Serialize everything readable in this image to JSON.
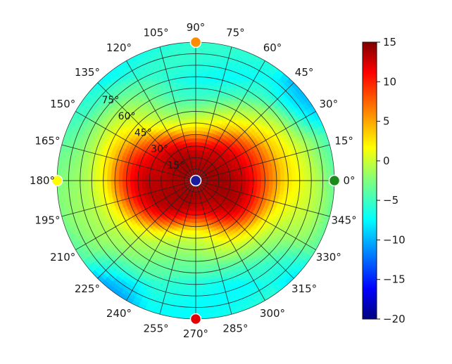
{
  "chart_data": {
    "type": "heatmap",
    "projection": "polar",
    "title": "",
    "angular_axis": {
      "unit": "degree",
      "ticks": [
        0,
        15,
        30,
        45,
        60,
        75,
        90,
        105,
        120,
        135,
        150,
        165,
        180,
        195,
        210,
        225,
        240,
        255,
        270,
        285,
        300,
        315,
        330,
        345
      ],
      "tick_labels": [
        "0°",
        "15°",
        "30°",
        "45°",
        "60°",
        "75°",
        "90°",
        "105°",
        "120°",
        "135°",
        "150°",
        "165°",
        "180°",
        "195°",
        "210°",
        "225°",
        "240°",
        "255°",
        "270°",
        "285°",
        "300°",
        "315°",
        "330°",
        "345°"
      ]
    },
    "radial_axis": {
      "range": [
        0,
        90
      ],
      "ticks": [
        15,
        30,
        45,
        60,
        75
      ],
      "tick_labels": [
        "15°",
        "30°",
        "45°",
        "60°",
        "75°"
      ],
      "extra_grid_rings": [
        7.5,
        22.5,
        37.5,
        52.5,
        67.5,
        82.5
      ],
      "label_angle": 135
    },
    "grid": true,
    "colorbar": {
      "colormap": "jet",
      "range": [
        -20,
        15
      ],
      "ticks": [
        15,
        10,
        5,
        0,
        -5,
        -10,
        -15,
        -20
      ],
      "tick_labels": [
        "15",
        "10",
        "5",
        "0",
        "−5",
        "−10",
        "−15",
        "−20"
      ],
      "position": "right"
    },
    "values_description": "Value versus direction: about 14 at the centre, falling to roughly 7 near 35° and to about −4 to −8 near the rim.",
    "profile": {
      "r": [
        0,
        15,
        25,
        32,
        38,
        45,
        55,
        65,
        75,
        85,
        90
      ],
      "value": [
        14,
        13.5,
        12.5,
        10,
        7,
        3,
        0,
        -2,
        -4,
        -5,
        -6
      ]
    },
    "anisotropy": "hot region extends farther along the 0°/180° axis than along 90°/270°; cooler patches near 30°-45° and 225°-240° rims",
    "markers": [
      {
        "angle": 0,
        "r": 90,
        "color": "#1a8a1a"
      },
      {
        "angle": 90,
        "r": 90,
        "color": "#ff8c00"
      },
      {
        "angle": 180,
        "r": 90,
        "color": "#ffff00"
      },
      {
        "angle": 270,
        "r": 90,
        "color": "#e00000"
      }
    ],
    "center_marker": {
      "color": "#1b1b9e"
    }
  }
}
